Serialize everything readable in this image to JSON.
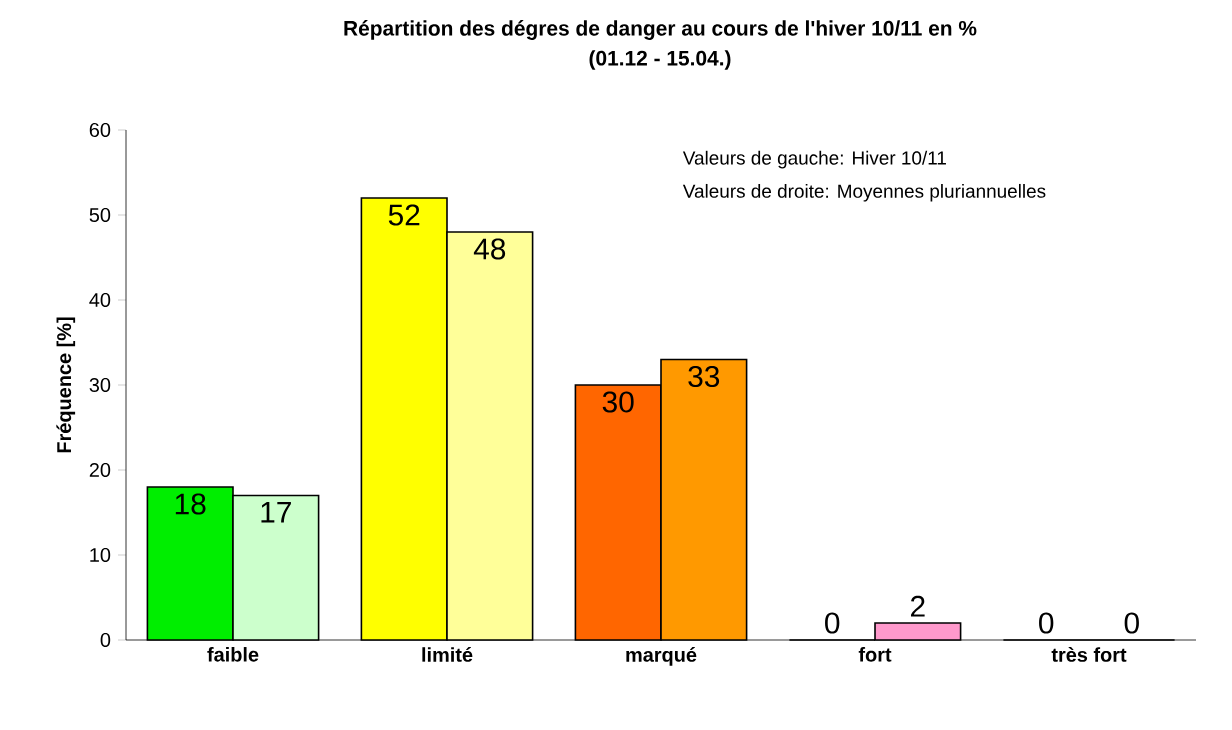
{
  "chart_data": {
    "type": "bar",
    "title": "Répartition des dégres de danger au cours de l'hiver 10/11 en %",
    "subtitle": "(01.12 - 15.04.)",
    "ylabel": "Fréquence [%]",
    "categories": [
      "faible",
      "limité",
      "marqué",
      "fort",
      "très fort"
    ],
    "series": [
      {
        "values": [
          18,
          52,
          30,
          0,
          0
        ],
        "colors": [
          "#00ee00",
          "#ffff00",
          "#ff6600",
          "#ff0000",
          "#990000"
        ]
      },
      {
        "values": [
          17,
          48,
          33,
          2,
          0
        ],
        "colors": [
          "#ccffcc",
          "#ffff99",
          "#ff9900",
          "#ff99cc",
          "#cc66cc"
        ]
      }
    ],
    "ylim": [
      0,
      60
    ],
    "yticks": [
      0,
      10,
      20,
      30,
      40,
      50,
      60
    ],
    "data_labels": true,
    "annotations": [
      "Valeurs de gauche: Hiver 10/11",
      "Valeurs de droite: Moyennes pluriannuelles"
    ]
  }
}
